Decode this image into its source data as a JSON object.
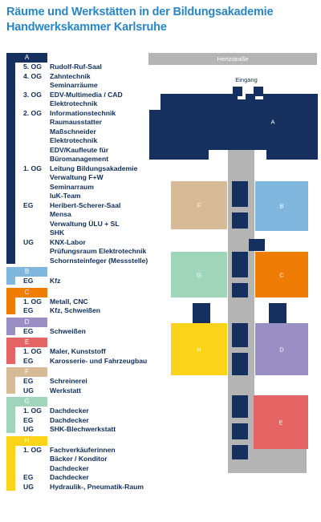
{
  "title": {
    "line1": "Räume und Werkstätten in der Bildungsakademie",
    "line2": "Handwerkskammer Karlsruhe"
  },
  "colors": {
    "A": "#15305f",
    "B": "#80b7df",
    "C": "#ef7d05",
    "D": "#9a8fc4",
    "E": "#e56565",
    "F": "#d7bb96",
    "G": "#9fd5b8",
    "H": "#fbd319",
    "corridor": "#b4b4b4",
    "street": "#b4b4b4",
    "title": "#2a86c5",
    "text": "#0f2e5a"
  },
  "legend": [
    {
      "key": "A",
      "rows": [
        {
          "level": "5. OG",
          "text": "Rudolf-Ruf-Saal"
        },
        {
          "level": "4. OG",
          "text": "Zahntechnik"
        },
        {
          "level": "",
          "text": "Seminarräume"
        },
        {
          "level": "3. OG",
          "text": "EDV-Multimedia / CAD"
        },
        {
          "level": "",
          "text": "Elektrotechnik"
        },
        {
          "level": "2. OG",
          "text": "Informationstechnik"
        },
        {
          "level": "",
          "text": "Raumausstatter"
        },
        {
          "level": "",
          "text": "Maßschneider"
        },
        {
          "level": "",
          "text": "Elektrotechnik"
        },
        {
          "level": "",
          "text": "EDV/Kaufleute für"
        },
        {
          "level": "",
          "text": "Büromanagement"
        },
        {
          "level": "1. OG",
          "text": "Leitung Bildungsakademie"
        },
        {
          "level": "",
          "text": "Verwaltung F+W"
        },
        {
          "level": "",
          "text": "Seminarraum"
        },
        {
          "level": "",
          "text": "IuK-Team"
        },
        {
          "level": "EG",
          "text": "Heribert-Scherer-Saal"
        },
        {
          "level": "",
          "text": "Mensa"
        },
        {
          "level": "",
          "text": "Verwaltung ÜLU + SL"
        },
        {
          "level": "",
          "text": "SHK"
        },
        {
          "level": "UG",
          "text": "KNX-Labor"
        },
        {
          "level": "",
          "text": "Prüfungsraum Elektrotechnik"
        },
        {
          "level": "",
          "text": "Schornsteinfeger (Messstelle)"
        }
      ]
    },
    {
      "key": "B",
      "rows": [
        {
          "level": "EG",
          "text": "Kfz"
        }
      ]
    },
    {
      "key": "C",
      "rows": [
        {
          "level": "1. OG",
          "text": "Metall, CNC"
        },
        {
          "level": "EG",
          "text": "Kfz, Schweißen"
        }
      ]
    },
    {
      "key": "D",
      "rows": [
        {
          "level": "EG",
          "text": "Schweißen"
        }
      ]
    },
    {
      "key": "E",
      "rows": [
        {
          "level": "1. OG",
          "text": "Maler, Kunststoff"
        },
        {
          "level": "EG",
          "text": "Karosserie- und Fahrzeugbau"
        }
      ]
    },
    {
      "key": "F",
      "rows": [
        {
          "level": "EG",
          "text": "Schreinerei"
        },
        {
          "level": "UG",
          "text": "Werkstatt"
        }
      ]
    },
    {
      "key": "G",
      "rows": [
        {
          "level": "1. OG",
          "text": "Dachdecker"
        },
        {
          "level": "EG",
          "text": "Dachdecker"
        },
        {
          "level": "UG",
          "text": "SHK-Blechwerkstatt"
        }
      ]
    },
    {
      "key": "H",
      "rows": [
        {
          "level": "1. OG",
          "text": "Fachverkäuferinnen"
        },
        {
          "level": "",
          "text": "Bäcker / Konditor"
        },
        {
          "level": "",
          "text": "Dachdecker"
        },
        {
          "level": "EG",
          "text": "Dachdecker"
        },
        {
          "level": "UG",
          "text": "Hydraulik-, Pneumatik-Raum"
        }
      ]
    }
  ],
  "map": {
    "street": "Hertzstraße",
    "entrance": "Eingang",
    "labels": {
      "A": "A",
      "B": "B",
      "C": "C",
      "D": "D",
      "E": "E",
      "F": "F",
      "G": "G",
      "H": "H"
    }
  }
}
